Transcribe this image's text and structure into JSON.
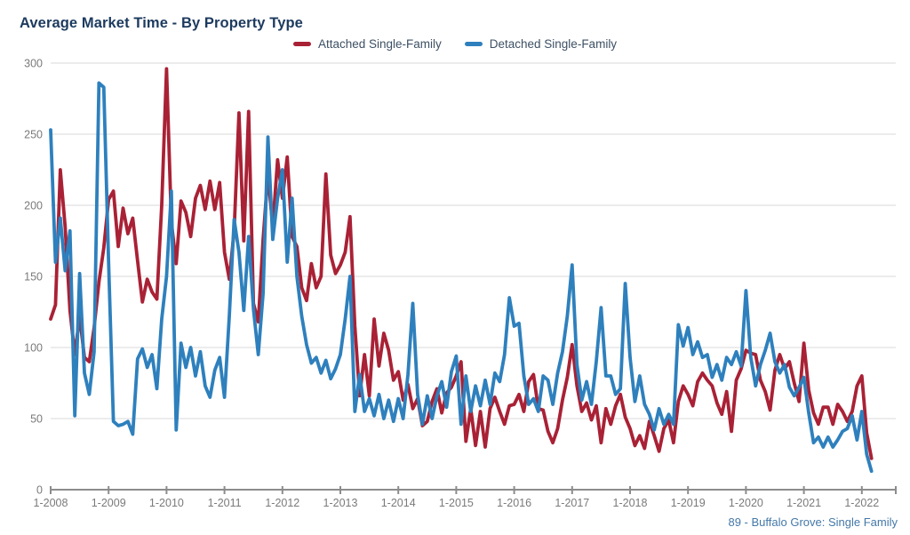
{
  "page": {
    "title": "Average Market Time - By Property Type",
    "footer": "89 - Buffalo Grove: Single Family"
  },
  "colors": {
    "title_text": "#1c3a5e",
    "legend_text": "#3d5064",
    "axis_text": "#7a7a7a",
    "axis_line": "#8c8c8c",
    "gridline": "#d9d9d9",
    "footer_text": "#4478a8",
    "background": "#ffffff"
  },
  "chart_data": {
    "type": "line",
    "title": "Average Market Time - By Property Type",
    "x_unit": "month",
    "x_range": [
      "2008-01",
      "2022-03"
    ],
    "x_tick_labels": [
      "1-2008",
      "1-2009",
      "1-2010",
      "1-2011",
      "1-2012",
      "1-2013",
      "1-2014",
      "1-2015",
      "1-2016",
      "1-2017",
      "1-2018",
      "1-2019",
      "1-2020",
      "1-2021",
      "1-2022"
    ],
    "y_ticks": [
      0,
      50,
      100,
      150,
      200,
      250,
      300
    ],
    "ylim": [
      0,
      300
    ],
    "grid": "horizontal-only",
    "legend_position": "top-center",
    "series": [
      {
        "name": "Attached Single-Family",
        "color": "#a92135",
        "values": [
          120,
          130,
          225,
          185,
          126,
          95,
          122,
          93,
          90,
          114,
          146,
          170,
          204,
          210,
          171,
          198,
          180,
          191,
          161,
          132,
          148,
          139,
          134,
          200,
          296,
          188,
          159,
          203,
          195,
          178,
          205,
          214,
          197,
          217,
          197,
          216,
          167,
          148,
          182,
          265,
          175,
          266,
          131,
          118,
          176,
          222,
          185,
          232,
          205,
          234,
          178,
          171,
          142,
          133,
          159,
          142,
          150,
          222,
          165,
          152,
          158,
          167,
          192,
          115,
          66,
          95,
          66,
          120,
          87,
          110,
          98,
          77,
          83,
          63,
          74,
          57,
          64,
          45,
          48,
          62,
          71,
          54,
          68,
          72,
          80,
          90,
          34,
          57,
          31,
          55,
          30,
          57,
          65,
          55,
          46,
          59,
          60,
          67,
          55,
          76,
          81,
          57,
          56,
          41,
          33,
          43,
          63,
          79,
          102,
          73,
          55,
          61,
          49,
          59,
          33,
          57,
          46,
          59,
          67,
          51,
          43,
          31,
          38,
          29,
          48,
          38,
          27,
          43,
          49,
          33,
          62,
          73,
          67,
          59,
          76,
          82,
          77,
          73,
          61,
          53,
          69,
          41,
          77,
          85,
          98,
          96,
          95,
          77,
          69,
          56,
          84,
          95,
          85,
          90,
          75,
          62,
          103,
          70,
          54,
          46,
          58,
          58,
          46,
          60,
          55,
          48,
          55,
          73,
          80,
          40,
          22
        ]
      },
      {
        "name": "Detached Single-Family",
        "color": "#2e80bd",
        "values": [
          253,
          160,
          191,
          154,
          182,
          52,
          152,
          82,
          67,
          97,
          286,
          283,
          160,
          48,
          45,
          46,
          48,
          39,
          92,
          99,
          86,
          95,
          71,
          120,
          150,
          210,
          42,
          103,
          86,
          100,
          80,
          97,
          73,
          65,
          84,
          93,
          65,
          122,
          190,
          167,
          126,
          178,
          127,
          95,
          138,
          248,
          176,
          205,
          225,
          160,
          205,
          150,
          122,
          102,
          89,
          93,
          82,
          91,
          78,
          85,
          95,
          120,
          150,
          55,
          81,
          55,
          64,
          52,
          67,
          50,
          63,
          48,
          64,
          50,
          81,
          131,
          67,
          46,
          66,
          50,
          66,
          76,
          58,
          83,
          94,
          46,
          80,
          55,
          73,
          59,
          77,
          60,
          82,
          76,
          95,
          135,
          115,
          117,
          80,
          60,
          64,
          55,
          80,
          77,
          60,
          82,
          97,
          122,
          158,
          88,
          63,
          76,
          60,
          90,
          128,
          80,
          80,
          67,
          71,
          145,
          93,
          62,
          80,
          60,
          53,
          42,
          57,
          46,
          53,
          46,
          116,
          101,
          114,
          95,
          104,
          93,
          95,
          79,
          88,
          77,
          93,
          88,
          97,
          87,
          140,
          93,
          73,
          88,
          98,
          110,
          90,
          82,
          88,
          72,
          66,
          72,
          79,
          54,
          33,
          37,
          30,
          37,
          30,
          35,
          41,
          43,
          52,
          35,
          55,
          25,
          13
        ]
      }
    ]
  }
}
